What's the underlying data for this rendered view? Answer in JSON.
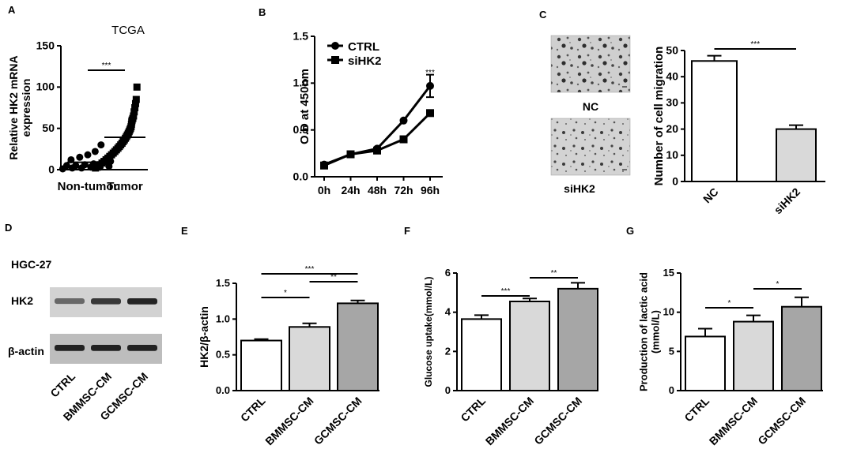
{
  "panels": {
    "A": {
      "letter": "A"
    },
    "B": {
      "letter": "B"
    },
    "C": {
      "letter": "C"
    },
    "D": {
      "letter": "D"
    },
    "E": {
      "letter": "E"
    },
    "F": {
      "letter": "F"
    },
    "G": {
      "letter": "G"
    }
  },
  "western_blot": {
    "cell_line": "HGC-27",
    "bands": [
      "HK2",
      "β-actin"
    ],
    "lanes": [
      "CTRL",
      "BMMSC-CM",
      "GCMSC-CM"
    ],
    "band_intensity": {
      "HK2": [
        0.55,
        0.8,
        0.9
      ],
      "β-actin": [
        0.9,
        0.9,
        0.9
      ]
    }
  },
  "micrographs": {
    "top_label": "NC",
    "bottom_label": "siHK2"
  },
  "chart_data": [
    {
      "panel": "A",
      "type": "scatter",
      "title": "TCGA",
      "xlabel": "",
      "ylabel": "Relative HK2 mRNA expression",
      "ylabel_lines": [
        "Relative HK2 mRNA",
        "expression"
      ],
      "categories": [
        "Non-tumor",
        "Tumor"
      ],
      "ylim": [
        0,
        150
      ],
      "yticks": [
        0,
        50,
        100,
        150
      ],
      "series": [
        {
          "name": "Non-tumor",
          "marker": "circle",
          "values": [
            1,
            2,
            2,
            3,
            3,
            4,
            5,
            5,
            6,
            7,
            8,
            10,
            12,
            15,
            18,
            22,
            30
          ]
        },
        {
          "name": "Tumor",
          "marker": "square",
          "values": [
            2,
            4,
            6,
            8,
            10,
            12,
            14,
            16,
            18,
            20,
            22,
            24,
            26,
            28,
            30,
            32,
            34,
            36,
            38,
            40,
            42,
            44,
            46,
            48,
            50,
            52,
            55,
            58,
            60,
            62,
            65,
            70,
            75,
            80,
            85,
            100
          ]
        }
      ],
      "sig": [
        {
          "from": 0,
          "to": 1,
          "label": "***"
        }
      ]
    },
    {
      "panel": "B",
      "type": "line",
      "title": "",
      "xlabel": "",
      "ylabel": "O.D at 450nm",
      "categories": [
        "0h",
        "24h",
        "48h",
        "72h",
        "96h"
      ],
      "ylim": [
        0,
        1.5
      ],
      "yticks": [
        0.0,
        0.5,
        1.0,
        1.5
      ],
      "ytick_labels": [
        "0.0",
        "0.5",
        "1.0",
        "1.5"
      ],
      "series": [
        {
          "name": "CTRL",
          "marker": "circle",
          "values": [
            0.13,
            0.24,
            0.3,
            0.6,
            0.97
          ],
          "errors": [
            0.02,
            0.02,
            0.02,
            0.02,
            0.12
          ]
        },
        {
          "name": "siHK2",
          "marker": "square",
          "values": [
            0.12,
            0.24,
            0.28,
            0.4,
            0.68
          ],
          "errors": [
            0.02,
            0.02,
            0.02,
            0.02,
            0.02
          ]
        }
      ],
      "annotations": [
        {
          "category": "96h",
          "label": "***"
        }
      ]
    },
    {
      "panel": "C",
      "type": "bar",
      "title": "",
      "xlabel": "",
      "ylabel": "Number of cell migration",
      "categories": [
        "NC",
        "siHK2"
      ],
      "values": [
        46,
        20
      ],
      "errors": [
        2,
        1.5
      ],
      "fills": [
        "#ffffff",
        "#d9d9d9"
      ],
      "ylim": [
        0,
        50
      ],
      "yticks": [
        0,
        10,
        20,
        30,
        40,
        50
      ],
      "sig": [
        {
          "from": 0,
          "to": 1,
          "label": "***"
        }
      ]
    },
    {
      "panel": "E",
      "type": "bar",
      "title": "",
      "xlabel": "",
      "ylabel": "HK2/β-actin",
      "categories": [
        "CTRL",
        "BMMSC-CM",
        "GCMSC-CM"
      ],
      "values": [
        0.7,
        0.89,
        1.22
      ],
      "errors": [
        0.02,
        0.05,
        0.04
      ],
      "fills": [
        "#ffffff",
        "#d9d9d9",
        "#a6a6a6"
      ],
      "ylim": [
        0,
        1.5
      ],
      "yticks": [
        0.0,
        0.5,
        1.0,
        1.5
      ],
      "ytick_labels": [
        "0.0",
        "0.5",
        "1.0",
        "1.5"
      ],
      "sig": [
        {
          "from": 0,
          "to": 1,
          "label": "*"
        },
        {
          "from": 1,
          "to": 2,
          "label": "**"
        },
        {
          "from": 0,
          "to": 2,
          "label": "***"
        }
      ]
    },
    {
      "panel": "F",
      "type": "bar",
      "title": "",
      "xlabel": "",
      "ylabel": "Glucose uptake(mmol/L)",
      "categories": [
        "CTRL",
        "BMMSC-CM",
        "GCMSC-CM"
      ],
      "values": [
        3.65,
        4.55,
        5.2
      ],
      "errors": [
        0.2,
        0.15,
        0.3
      ],
      "fills": [
        "#ffffff",
        "#d9d9d9",
        "#a6a6a6"
      ],
      "ylim": [
        0,
        6
      ],
      "yticks": [
        0,
        2,
        4,
        6
      ],
      "sig": [
        {
          "from": 0,
          "to": 1,
          "label": "***"
        },
        {
          "from": 1,
          "to": 2,
          "label": "**"
        }
      ]
    },
    {
      "panel": "G",
      "type": "bar",
      "title": "",
      "xlabel": "",
      "ylabel": "Production of lactic acid (mmol/L)",
      "ylabel_lines": [
        "Production of lactic acid",
        "(mmol/L)"
      ],
      "categories": [
        "CTRL",
        "BMMSC-CM",
        "GCMSC-CM"
      ],
      "values": [
        6.9,
        8.8,
        10.7
      ],
      "errors": [
        1.0,
        0.8,
        1.2
      ],
      "fills": [
        "#ffffff",
        "#d9d9d9",
        "#a6a6a6"
      ],
      "ylim": [
        0,
        15
      ],
      "yticks": [
        0,
        5,
        10,
        15
      ],
      "sig": [
        {
          "from": 0,
          "to": 1,
          "label": "*"
        },
        {
          "from": 1,
          "to": 2,
          "label": "*"
        }
      ]
    }
  ]
}
